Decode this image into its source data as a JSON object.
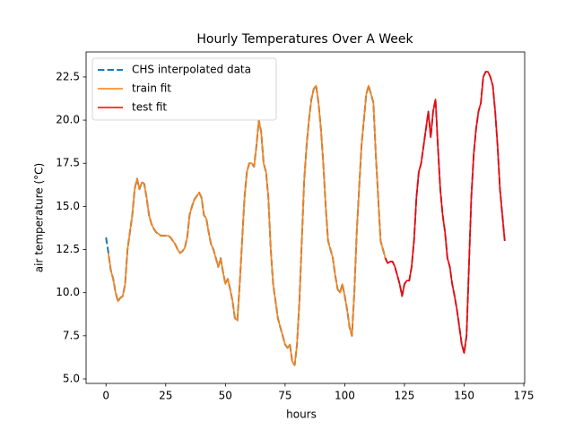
{
  "chart_data": {
    "type": "line",
    "title": "Hourly Temperatures Over A Week",
    "x_label": "hours",
    "y_label": "air temperature (°C)",
    "x": [
      0,
      1,
      2,
      3,
      4,
      5,
      6,
      7,
      8,
      9,
      10,
      11,
      12,
      13,
      14,
      15,
      16,
      17,
      18,
      19,
      20,
      21,
      22,
      23,
      24,
      25,
      26,
      27,
      28,
      29,
      30,
      31,
      32,
      33,
      34,
      35,
      36,
      37,
      38,
      39,
      40,
      41,
      42,
      43,
      44,
      45,
      46,
      47,
      48,
      49,
      50,
      51,
      52,
      53,
      54,
      55,
      56,
      57,
      58,
      59,
      60,
      61,
      62,
      63,
      64,
      65,
      66,
      67,
      68,
      69,
      70,
      71,
      72,
      73,
      74,
      75,
      76,
      77,
      78,
      79,
      80,
      81,
      82,
      83,
      84,
      85,
      86,
      87,
      88,
      89,
      90,
      91,
      92,
      93,
      94,
      95,
      96,
      97,
      98,
      99,
      100,
      101,
      102,
      103,
      104,
      105,
      106,
      107,
      108,
      109,
      110,
      111,
      112,
      113,
      114,
      115,
      116,
      117,
      118,
      119,
      120,
      121,
      122,
      123,
      124,
      125,
      126,
      127,
      128,
      129,
      130,
      131,
      132,
      133,
      134,
      135,
      136,
      137,
      138,
      139,
      140,
      141,
      142,
      143,
      144,
      145,
      146,
      147,
      148,
      149,
      150,
      151,
      152,
      153,
      154,
      155,
      156,
      157,
      158,
      159,
      160,
      161,
      162,
      163,
      164,
      165,
      166,
      167
    ],
    "series": [
      {
        "name": "CHS interpolated data",
        "color": "#1f77b4",
        "linestyle": "dashed",
        "values": [
          13.2,
          12.3,
          11.3,
          10.8,
          10.0,
          9.5,
          9.7,
          9.8,
          10.5,
          12.5,
          13.5,
          14.5,
          16.0,
          16.6,
          16.0,
          16.4,
          16.3,
          15.5,
          14.5,
          14.0,
          13.7,
          13.5,
          13.4,
          13.3,
          13.3,
          13.3,
          13.3,
          13.2,
          13.0,
          12.8,
          12.5,
          12.3,
          12.4,
          12.6,
          13.2,
          14.5,
          15.0,
          15.4,
          15.6,
          15.8,
          15.5,
          14.5,
          14.3,
          13.5,
          12.8,
          12.5,
          12.0,
          11.5,
          12.0,
          11.2,
          10.5,
          10.8,
          10.2,
          9.5,
          8.5,
          8.4,
          10.5,
          13.0,
          15.5,
          17.0,
          17.5,
          17.5,
          17.3,
          18.5,
          20.0,
          19.3,
          17.5,
          17.0,
          15.5,
          12.5,
          10.5,
          9.5,
          8.5,
          8.0,
          7.5,
          7.0,
          6.8,
          7.0,
          6.0,
          5.8,
          7.0,
          9.5,
          13.0,
          16.5,
          18.5,
          20.0,
          21.2,
          21.8,
          22.0,
          21.0,
          19.5,
          17.5,
          15.0,
          13.0,
          12.5,
          12.0,
          11.0,
          10.2,
          10.0,
          10.5,
          9.8,
          9.0,
          8.0,
          7.5,
          10.0,
          13.5,
          16.0,
          18.5,
          20.0,
          21.5,
          22.0,
          21.5,
          21.0,
          18.0,
          15.5,
          13.0,
          12.5,
          12.0,
          11.7,
          11.8,
          11.8,
          11.5,
          11.0,
          10.5,
          9.8,
          10.5,
          10.7,
          10.7,
          11.5,
          13.0,
          15.5,
          17.0,
          17.5,
          18.5,
          19.5,
          20.5,
          19.0,
          20.5,
          21.2,
          18.5,
          16.0,
          14.5,
          13.5,
          12.0,
          11.5,
          10.5,
          9.8,
          9.0,
          8.0,
          7.0,
          6.5,
          7.5,
          11.5,
          15.5,
          18.0,
          19.5,
          20.5,
          21.0,
          22.5,
          22.8,
          22.8,
          22.5,
          22.0,
          20.5,
          18.5,
          16.0,
          14.5,
          13.0
        ]
      },
      {
        "name": "train fit",
        "color": "#ff7f0e",
        "linestyle": "solid",
        "values": [
          null,
          12.3,
          11.3,
          10.8,
          10.0,
          9.5,
          9.7,
          9.8,
          10.5,
          12.5,
          13.5,
          14.5,
          16.0,
          16.6,
          16.0,
          16.4,
          16.3,
          15.5,
          14.5,
          14.0,
          13.7,
          13.5,
          13.4,
          13.3,
          13.3,
          13.3,
          13.3,
          13.2,
          13.0,
          12.8,
          12.5,
          12.3,
          12.4,
          12.6,
          13.2,
          14.5,
          15.0,
          15.4,
          15.6,
          15.8,
          15.5,
          14.5,
          14.3,
          13.5,
          12.8,
          12.5,
          12.0,
          11.5,
          12.0,
          11.2,
          10.5,
          10.8,
          10.2,
          9.5,
          8.5,
          8.4,
          10.5,
          13.0,
          15.5,
          17.0,
          17.5,
          17.5,
          17.3,
          18.5,
          20.0,
          19.3,
          17.5,
          17.0,
          15.5,
          12.5,
          10.5,
          9.5,
          8.5,
          8.0,
          7.5,
          7.0,
          6.8,
          7.0,
          6.0,
          5.8,
          7.0,
          9.5,
          13.0,
          16.5,
          18.5,
          20.0,
          21.2,
          21.8,
          22.0,
          21.0,
          19.5,
          17.5,
          15.0,
          13.0,
          12.5,
          12.0,
          11.0,
          10.2,
          10.0,
          10.5,
          9.8,
          9.0,
          8.0,
          7.5,
          10.0,
          13.5,
          16.0,
          18.5,
          20.0,
          21.5,
          22.0,
          21.5,
          21.0,
          18.0,
          15.5,
          13.0,
          12.5,
          12.0,
          null,
          null,
          null,
          null,
          null,
          null,
          null,
          null,
          null,
          null,
          null,
          null,
          null,
          null,
          null,
          null,
          null,
          null,
          null,
          null,
          null,
          null,
          null,
          null,
          null,
          null,
          null,
          null,
          null,
          null,
          null,
          null,
          null,
          null,
          null,
          null,
          null,
          null,
          null,
          null,
          null,
          null,
          null,
          null,
          null,
          null,
          null,
          null,
          null,
          null
        ]
      },
      {
        "name": "test fit",
        "color": "#ff0000",
        "linestyle": "solid",
        "values": [
          null,
          null,
          null,
          null,
          null,
          null,
          null,
          null,
          null,
          null,
          null,
          null,
          null,
          null,
          null,
          null,
          null,
          null,
          null,
          null,
          null,
          null,
          null,
          null,
          null,
          null,
          null,
          null,
          null,
          null,
          null,
          null,
          null,
          null,
          null,
          null,
          null,
          null,
          null,
          null,
          null,
          null,
          null,
          null,
          null,
          null,
          null,
          null,
          null,
          null,
          null,
          null,
          null,
          null,
          null,
          null,
          null,
          null,
          null,
          null,
          null,
          null,
          null,
          null,
          null,
          null,
          null,
          null,
          null,
          null,
          null,
          null,
          null,
          null,
          null,
          null,
          null,
          null,
          null,
          null,
          null,
          null,
          null,
          null,
          null,
          null,
          null,
          null,
          null,
          null,
          null,
          null,
          null,
          null,
          null,
          null,
          null,
          null,
          null,
          null,
          null,
          null,
          null,
          null,
          null,
          null,
          null,
          null,
          null,
          null,
          null,
          null,
          null,
          null,
          null,
          null,
          null,
          12.0,
          11.7,
          11.8,
          11.8,
          11.5,
          11.0,
          10.5,
          9.8,
          10.5,
          10.7,
          10.7,
          11.5,
          13.0,
          15.5,
          17.0,
          17.5,
          18.5,
          19.5,
          20.5,
          19.0,
          20.5,
          21.2,
          18.5,
          16.0,
          14.5,
          13.5,
          12.0,
          11.5,
          10.5,
          9.8,
          9.0,
          8.0,
          7.0,
          6.5,
          7.5,
          11.5,
          15.5,
          18.0,
          19.5,
          20.5,
          21.0,
          22.5,
          22.8,
          22.8,
          22.5,
          22.0,
          20.5,
          18.5,
          16.0,
          14.5,
          13.0
        ]
      }
    ],
    "xlim": [
      -8.35,
      175.35
    ],
    "ylim": [
      4.74,
      23.95
    ],
    "xticks": [
      0,
      25,
      50,
      75,
      100,
      125,
      150,
      175
    ],
    "yticks": [
      {
        "value": 5,
        "label": "5.0"
      },
      7.5,
      {
        "value": 10,
        "label": "10.0"
      },
      12.5,
      {
        "value": 15,
        "label": "15.0"
      },
      17.5,
      {
        "value": 20,
        "label": "20.0"
      },
      22.5
    ],
    "legend": "upper left",
    "grid": false
  }
}
